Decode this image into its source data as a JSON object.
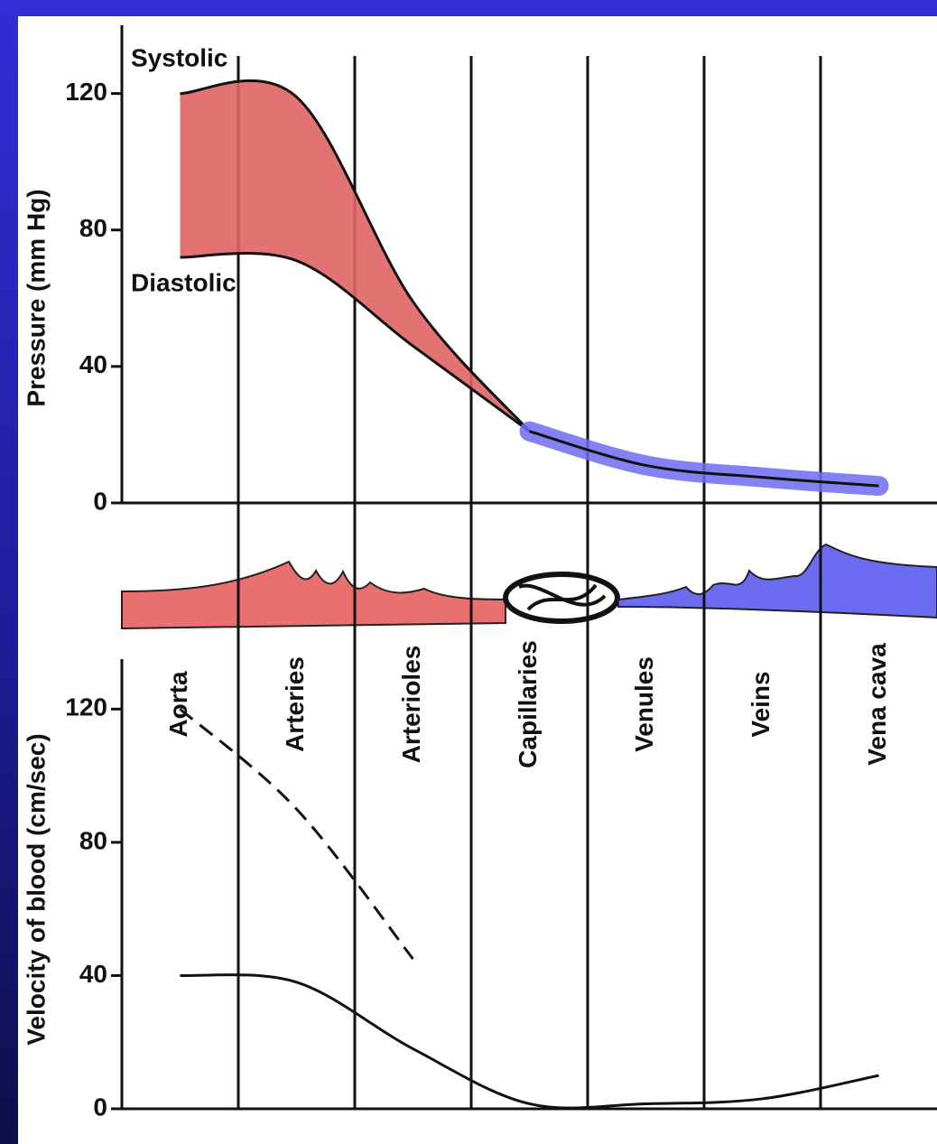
{
  "chart_data": [
    {
      "type": "line",
      "ylabel": "Pressure (mm Hg)",
      "ylim": [
        0,
        140
      ],
      "yticks": [
        0,
        40,
        80,
        120
      ],
      "series": [
        {
          "name": "Systolic",
          "color": "#e06464",
          "values": [
            120,
            119,
            59,
            21,
            null,
            null,
            null
          ]
        },
        {
          "name": "Diastolic",
          "color": "#e06464",
          "values": [
            72,
            71,
            46,
            21,
            null,
            null,
            null
          ]
        },
        {
          "color": "#6c6cf2",
          "values": [
            null,
            null,
            null,
            21,
            11,
            7.5,
            5
          ]
        }
      ]
    },
    {
      "type": "line",
      "ylabel": "Velocity of blood (cm/sec)",
      "categories": [
        "Aorta",
        "Arteries",
        "Arterioles",
        "Capillaries",
        "Venules",
        "Veins",
        "Vena cava"
      ],
      "ylim": [
        0,
        135
      ],
      "yticks": [
        0,
        40,
        80,
        120
      ],
      "series": [
        {
          "color": "#111111",
          "values": [
            40,
            38,
            18,
            1.5,
            1.5,
            3,
            10
          ]
        },
        {
          "color": "#111111",
          "dashed": true,
          "values": [
            120,
            90,
            45,
            null,
            null,
            null,
            null
          ]
        }
      ]
    }
  ]
}
